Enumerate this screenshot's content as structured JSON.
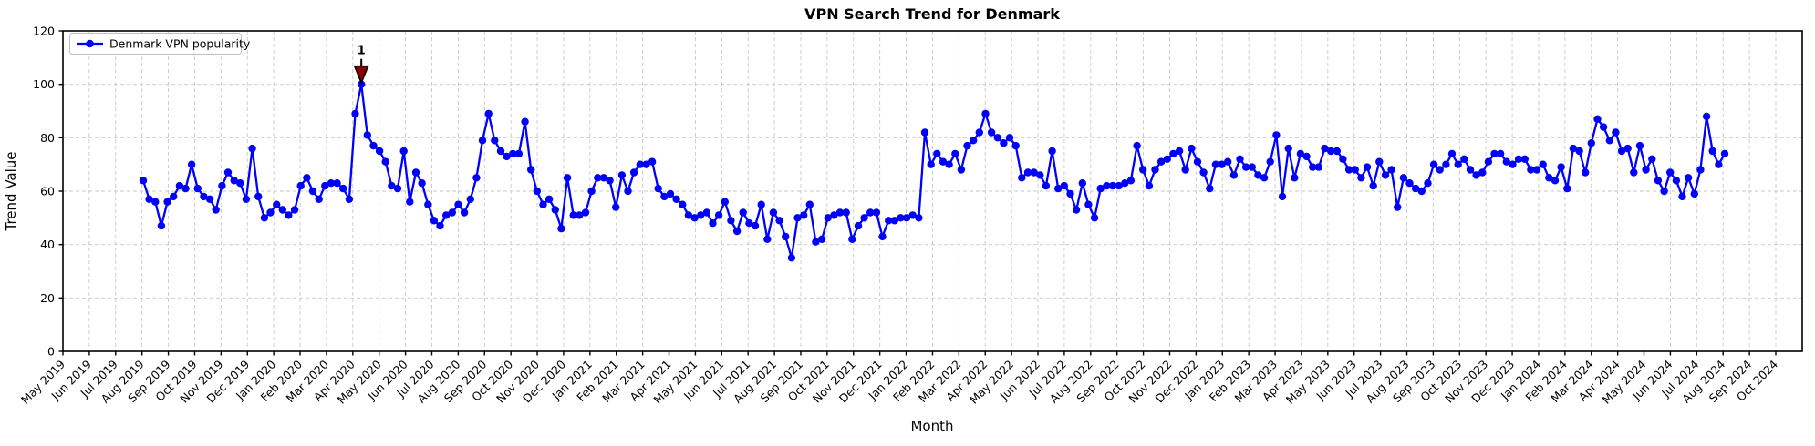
{
  "title": "VPN Search Trend for Denmark",
  "xlabel": "Month",
  "ylabel": "Trend Value",
  "legend": {
    "label": "Denmark VPN popularity",
    "position": "upper left"
  },
  "annotation": {
    "label": "1",
    "point_index": 36,
    "peak_value": 100,
    "color": "#8B0000"
  },
  "colors": {
    "line": "#0000ff",
    "marker": "#0000ff",
    "grid": "#c9c9c9",
    "axis": "#000000",
    "annotation": "#8B0000",
    "background": "#ffffff"
  },
  "chart_data": {
    "type": "line",
    "title": "VPN Search Trend for Denmark",
    "xlabel": "Month",
    "ylabel": "Trend Value",
    "ylim": [
      0,
      120
    ],
    "y_ticks": [
      0,
      20,
      40,
      60,
      80,
      100,
      120
    ],
    "grid": true,
    "legend_position": "upper left",
    "x_tick_labels": [
      "May 2019",
      "Jun 2019",
      "Jul 2019",
      "Aug 2019",
      "Sep 2019",
      "Oct 2019",
      "Nov 2019",
      "Dec 2019",
      "Jan 2020",
      "Feb 2020",
      "Mar 2020",
      "Apr 2020",
      "May 2020",
      "Jun 2020",
      "Jul 2020",
      "Aug 2020",
      "Sep 2020",
      "Oct 2020",
      "Nov 2020",
      "Dec 2020",
      "Jan 2021",
      "Feb 2021",
      "Mar 2021",
      "Apr 2021",
      "May 2021",
      "Jun 2021",
      "Jul 2021",
      "Aug 2021",
      "Sep 2021",
      "Oct 2021",
      "Nov 2021",
      "Dec 2021",
      "Jan 2022",
      "Feb 2022",
      "Mar 2022",
      "Apr 2022",
      "May 2022",
      "Jun 2022",
      "Jul 2022",
      "Aug 2022",
      "Sep 2022",
      "Oct 2022",
      "Nov 2022",
      "Dec 2022",
      "Jan 2023",
      "Feb 2023",
      "Mar 2023",
      "Apr 2023",
      "May 2023",
      "Jun 2023",
      "Jul 2023",
      "Aug 2023",
      "Sep 2023",
      "Oct 2023",
      "Nov 2023",
      "Dec 2023",
      "Jan 2024",
      "Feb 2024",
      "Mar 2024",
      "Apr 2024",
      "May 2024",
      "Jun 2024",
      "Jul 2024",
      "Aug 2024",
      "Sep 2024",
      "Oct 2024"
    ],
    "series": [
      {
        "name": "Denmark VPN popularity",
        "frequency": "weekly",
        "start_date": "2019-08-04",
        "end_date": "2024-08-04",
        "values": [
          64,
          57,
          56,
          47,
          56,
          58,
          62,
          61,
          70,
          61,
          58,
          57,
          53,
          62,
          67,
          64,
          63,
          57,
          76,
          58,
          50,
          52,
          55,
          53,
          51,
          53,
          62,
          65,
          60,
          57,
          62,
          63,
          63,
          61,
          57,
          89,
          100,
          81,
          77,
          75,
          71,
          62,
          61,
          75,
          56,
          67,
          63,
          55,
          49,
          47,
          51,
          52,
          55,
          52,
          57,
          65,
          79,
          89,
          79,
          75,
          73,
          74,
          74,
          86,
          68,
          60,
          55,
          57,
          53,
          46,
          65,
          51,
          51,
          52,
          60,
          65,
          65,
          64,
          54,
          66,
          60,
          67,
          70,
          70,
          71,
          61,
          58,
          59,
          57,
          55,
          51,
          50,
          51,
          52,
          48,
          51,
          56,
          49,
          45,
          52,
          48,
          47,
          55,
          42,
          52,
          49,
          43,
          35,
          50,
          51,
          55,
          41,
          42,
          50,
          51,
          52,
          52,
          42,
          47,
          50,
          52,
          52,
          43,
          49,
          49,
          50,
          50,
          51,
          50,
          82,
          70,
          74,
          71,
          70,
          74,
          68,
          77,
          79,
          82,
          89,
          82,
          80,
          78,
          80,
          77,
          65,
          67,
          67,
          66,
          62,
          75,
          61,
          62,
          59,
          53,
          63,
          55,
          50,
          61,
          62,
          62,
          62,
          63,
          64,
          77,
          68,
          62,
          68,
          71,
          72,
          74,
          75,
          68,
          76,
          71,
          67,
          61,
          70,
          70,
          71,
          66,
          72,
          69,
          69,
          66,
          65,
          71,
          81,
          58,
          76,
          65,
          74,
          73,
          69,
          69,
          76,
          75,
          75,
          72,
          68,
          68,
          65,
          69,
          62,
          71,
          66,
          68,
          54,
          65,
          63,
          61,
          60,
          63,
          70,
          68,
          70,
          74,
          70,
          72,
          68,
          66,
          67,
          71,
          74,
          74,
          71,
          70,
          72,
          72,
          68,
          68,
          70,
          65,
          64,
          69,
          61,
          76,
          75,
          67,
          78,
          87,
          84,
          79,
          82,
          75,
          76,
          67,
          77,
          68,
          72,
          64,
          60,
          67,
          64,
          58,
          65,
          59,
          68,
          88,
          75,
          70,
          74
        ]
      }
    ]
  },
  "layout_note": "weekly data points, annotated maximum marked 1 at value 100 in April 2020"
}
